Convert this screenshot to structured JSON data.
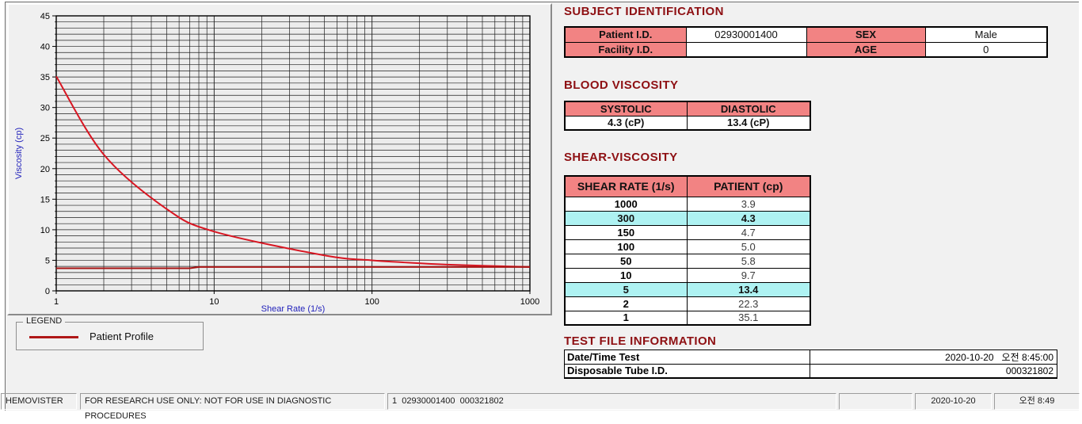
{
  "colors": {
    "heading": "#8e1013",
    "table_header_bg": "#f28383",
    "highlight_bg": "#aef2f2",
    "curve": "#d81622",
    "baseline": "#a81414",
    "axis_label": "#2222bb"
  },
  "chart_data": {
    "type": "line",
    "title": "",
    "xlabel": "Shear Rate (1/s)",
    "ylabel": "Viscosity (cp)",
    "x_scale": "log",
    "xlim": [
      1,
      1000
    ],
    "ylim": [
      0,
      45
    ],
    "x_ticks": [
      1,
      10,
      100,
      1000
    ],
    "y_major_ticks": [
      0,
      5,
      10,
      15,
      20,
      25,
      30,
      35,
      40,
      45
    ],
    "y_minor_step": 1,
    "grid": true,
    "legend_position": "below-left",
    "series": [
      {
        "name": "Patient Profile",
        "color": "#d81622",
        "smooth": true,
        "x": [
          1,
          2,
          5,
          10,
          50,
          100,
          150,
          300,
          1000
        ],
        "y": [
          35.1,
          22.3,
          13.4,
          9.7,
          5.8,
          5.0,
          4.7,
          4.3,
          3.9
        ]
      },
      {
        "name": "baseline",
        "color": "#a81414",
        "smooth": false,
        "x": [
          1,
          7,
          8,
          1000
        ],
        "y": [
          3.7,
          3.7,
          3.9,
          3.9
        ]
      }
    ]
  },
  "legend": {
    "box_label": "LEGEND",
    "entry": "Patient Profile",
    "entry_color": "#b01818"
  },
  "subject": {
    "title": "SUBJECT IDENTIFICATION",
    "rows": [
      {
        "label1": "Patient I.D.",
        "value1": "02930001400",
        "label2": "SEX",
        "value2": "Male"
      },
      {
        "label1": "Facility I.D.",
        "value1": "",
        "label2": "AGE",
        "value2": "0"
      }
    ]
  },
  "blood_viscosity": {
    "title": "BLOOD VISCOSITY",
    "headers": [
      "SYSTOLIC",
      "DIASTOLIC"
    ],
    "values": [
      "4.3 (cP)",
      "13.4 (cP)"
    ]
  },
  "shear_viscosity": {
    "title": "SHEAR-VISCOSITY",
    "headers": [
      "SHEAR RATE (1/s)",
      "PATIENT (cp)"
    ],
    "rows": [
      {
        "rate": "1000",
        "value": "3.9",
        "highlight": false
      },
      {
        "rate": "300",
        "value": "4.3",
        "highlight": true
      },
      {
        "rate": "150",
        "value": "4.7",
        "highlight": false
      },
      {
        "rate": "100",
        "value": "5.0",
        "highlight": false
      },
      {
        "rate": "50",
        "value": "5.8",
        "highlight": false
      },
      {
        "rate": "10",
        "value": "9.7",
        "highlight": false
      },
      {
        "rate": "5",
        "value": "13.4",
        "highlight": true
      },
      {
        "rate": "2",
        "value": "22.3",
        "highlight": false
      },
      {
        "rate": "1",
        "value": "35.1",
        "highlight": false
      }
    ]
  },
  "test_file": {
    "title": "TEST FILE INFORMATION",
    "rows": [
      {
        "label": "Date/Time Test",
        "value": "2020-10-20   오전 8:45:00"
      },
      {
        "label": "Disposable Tube I.D.",
        "value": "000321802"
      }
    ]
  },
  "statusbar": {
    "items": [
      "HEMOVISTER",
      "FOR RESEARCH USE ONLY: NOT FOR USE IN DIAGNOSTIC PROCEDURES",
      "1  02930001400  000321802",
      "",
      "2020-10-20",
      "오전 8:49"
    ]
  }
}
